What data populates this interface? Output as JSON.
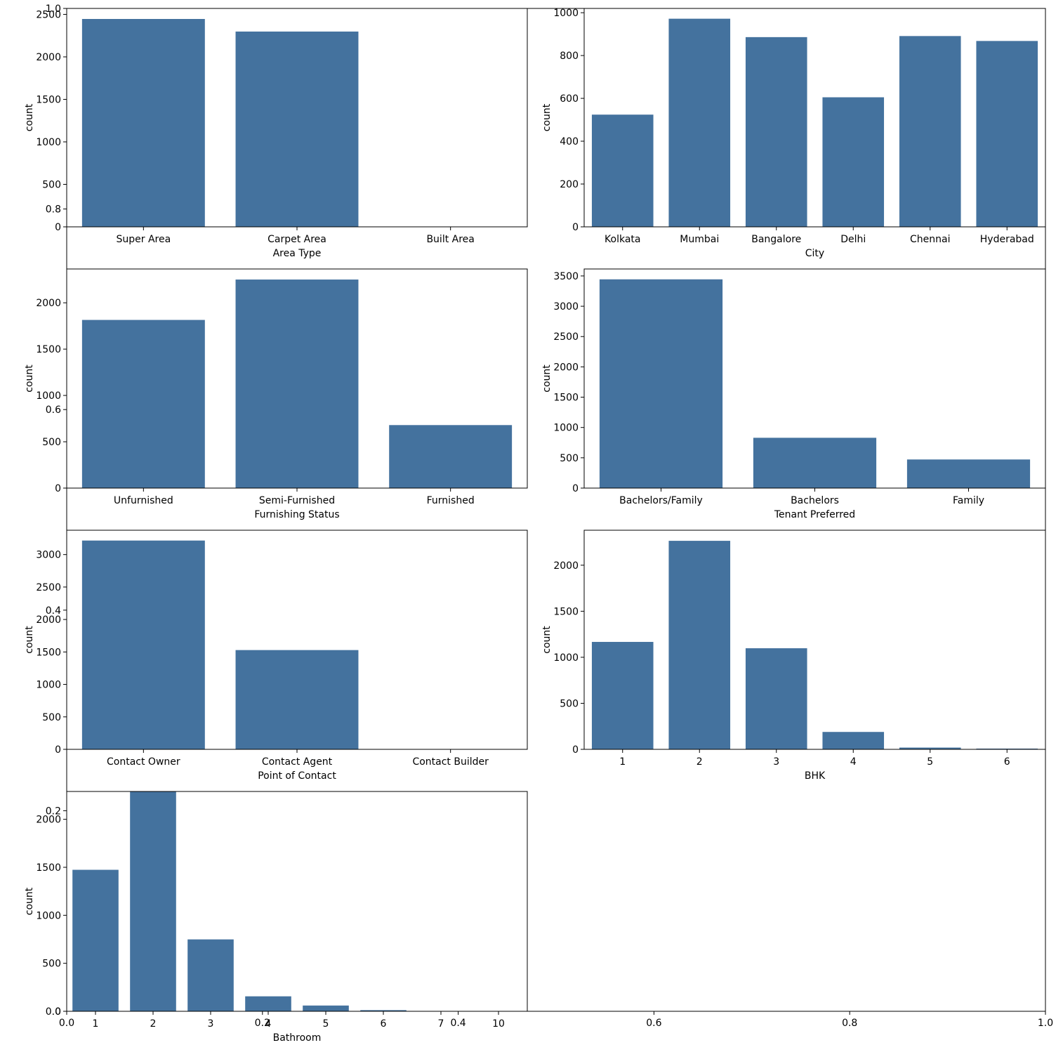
{
  "colors": {
    "bar": "#44729e",
    "axis": "#000000",
    "background": "#ffffff"
  },
  "background_axis": {
    "x_ticks": [
      "0.0",
      "0.2",
      "0.4",
      "0.6",
      "0.8",
      "1.0"
    ],
    "y_ticks": [
      "0.0",
      "0.2",
      "0.4",
      "0.6",
      "0.8",
      "1.0"
    ]
  },
  "chart_data": [
    {
      "type": "bar",
      "xlabel": "Area Type",
      "ylabel": "count",
      "categories": [
        "Super Area",
        "Carpet Area",
        "Built Area"
      ],
      "values": [
        2446,
        2298,
        2
      ],
      "ylim": [
        0,
        2570
      ],
      "yticks": [
        "0",
        "500",
        "1000",
        "1500",
        "2000",
        "2500"
      ]
    },
    {
      "type": "bar",
      "xlabel": "City",
      "ylabel": "count",
      "categories": [
        "Kolkata",
        "Mumbai",
        "Bangalore",
        "Delhi",
        "Chennai",
        "Hyderabad"
      ],
      "values": [
        524,
        972,
        886,
        605,
        891,
        868
      ],
      "ylim": [
        0,
        1020
      ],
      "yticks": [
        "0",
        "200",
        "400",
        "600",
        "800",
        "1000"
      ]
    },
    {
      "type": "bar",
      "xlabel": "Furnishing Status",
      "ylabel": "count",
      "categories": [
        "Unfurnished",
        "Semi-Furnished",
        "Furnished"
      ],
      "values": [
        1815,
        2251,
        680
      ],
      "ylim": [
        0,
        2365
      ],
      "yticks": [
        "0",
        "500",
        "1000",
        "1500",
        "2000"
      ]
    },
    {
      "type": "bar",
      "xlabel": "Tenant Preferred",
      "ylabel": "count",
      "categories": [
        "Bachelors/Family",
        "Bachelors",
        "Family"
      ],
      "values": [
        3444,
        830,
        472
      ],
      "ylim": [
        0,
        3615
      ],
      "yticks": [
        "0",
        "500",
        "1000",
        "1500",
        "2000",
        "2500",
        "3000",
        "3500"
      ]
    },
    {
      "type": "bar",
      "xlabel": "Point of Contact",
      "ylabel": "count",
      "categories": [
        "Contact Owner",
        "Contact Agent",
        "Contact Builder"
      ],
      "values": [
        3216,
        1529,
        1
      ],
      "ylim": [
        0,
        3375
      ],
      "yticks": [
        "0",
        "500",
        "1000",
        "1500",
        "2000",
        "2500",
        "3000"
      ]
    },
    {
      "type": "bar",
      "xlabel": "BHK",
      "ylabel": "count",
      "categories": [
        "1",
        "2",
        "3",
        "4",
        "5",
        "6"
      ],
      "values": [
        1167,
        2265,
        1098,
        189,
        19,
        8
      ],
      "ylim": [
        0,
        2380
      ],
      "yticks": [
        "0",
        "500",
        "1000",
        "1500",
        "2000"
      ]
    },
    {
      "type": "bar",
      "xlabel": "Bathroom",
      "ylabel": "count",
      "categories": [
        "1",
        "2",
        "3",
        "4",
        "5",
        "6",
        "7",
        "10"
      ],
      "values": [
        1474,
        2291,
        749,
        156,
        60,
        12,
        3,
        1
      ],
      "ylim": [
        0,
        2290
      ],
      "yticks": [
        "0",
        "500",
        "1000",
        "1500",
        "2000"
      ]
    }
  ]
}
